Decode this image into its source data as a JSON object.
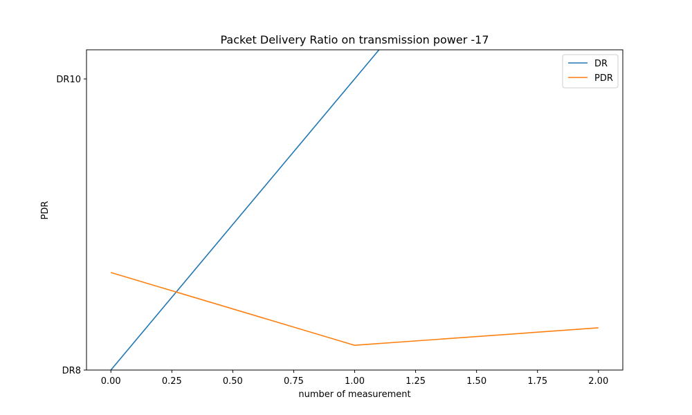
{
  "chart_data": {
    "type": "line",
    "title": "Packet Delivery Ratio on transmission power -17",
    "xlabel": "number of measurement",
    "ylabel": "PDR",
    "xlim": [
      -0.1,
      2.1
    ],
    "ylim": [
      8,
      10.2
    ],
    "x_ticks": [
      0.0,
      0.25,
      0.5,
      0.75,
      1.0,
      1.25,
      1.5,
      1.75,
      2.0
    ],
    "x_tick_labels": [
      "0.00",
      "0.25",
      "0.50",
      "0.75",
      "1.00",
      "1.25",
      "1.50",
      "1.75",
      "2.00"
    ],
    "y_ticks": [
      8,
      10
    ],
    "y_tick_labels": [
      "DR8",
      "DR10"
    ],
    "grid": false,
    "legend_position": "top-right",
    "series": [
      {
        "name": "DR",
        "color": "#1f77b4",
        "x": [
          0,
          1,
          2
        ],
        "y": [
          8,
          10,
          12
        ]
      },
      {
        "name": "PDR",
        "color": "#ff7f0e",
        "x": [
          0,
          1,
          2
        ],
        "y": [
          8.67,
          8.17,
          8.29
        ]
      }
    ]
  }
}
